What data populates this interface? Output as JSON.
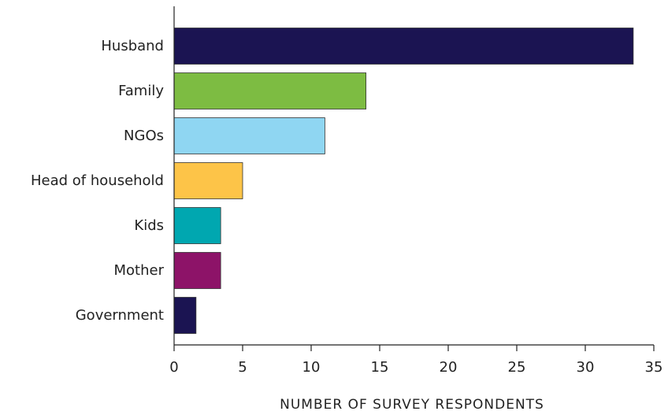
{
  "chart_data": {
    "type": "bar",
    "orientation": "horizontal",
    "categories": [
      "Husband",
      "Family",
      "NGOs",
      "Head of household",
      "Kids",
      "Mother",
      "Government"
    ],
    "values": [
      33.5,
      14,
      11,
      5,
      3.4,
      3.4,
      1.6
    ],
    "colors": [
      "#1b1452",
      "#7dbc42",
      "#8fd6f2",
      "#fdc448",
      "#00a7b0",
      "#8d1368",
      "#1b1452"
    ],
    "xlabel": "NUMBER OF SURVEY RESPONDENTS",
    "xlim": [
      0,
      35
    ],
    "xticks": [
      "0",
      "5",
      "10",
      "15",
      "20",
      "25",
      "30",
      "35"
    ],
    "grid": false
  }
}
